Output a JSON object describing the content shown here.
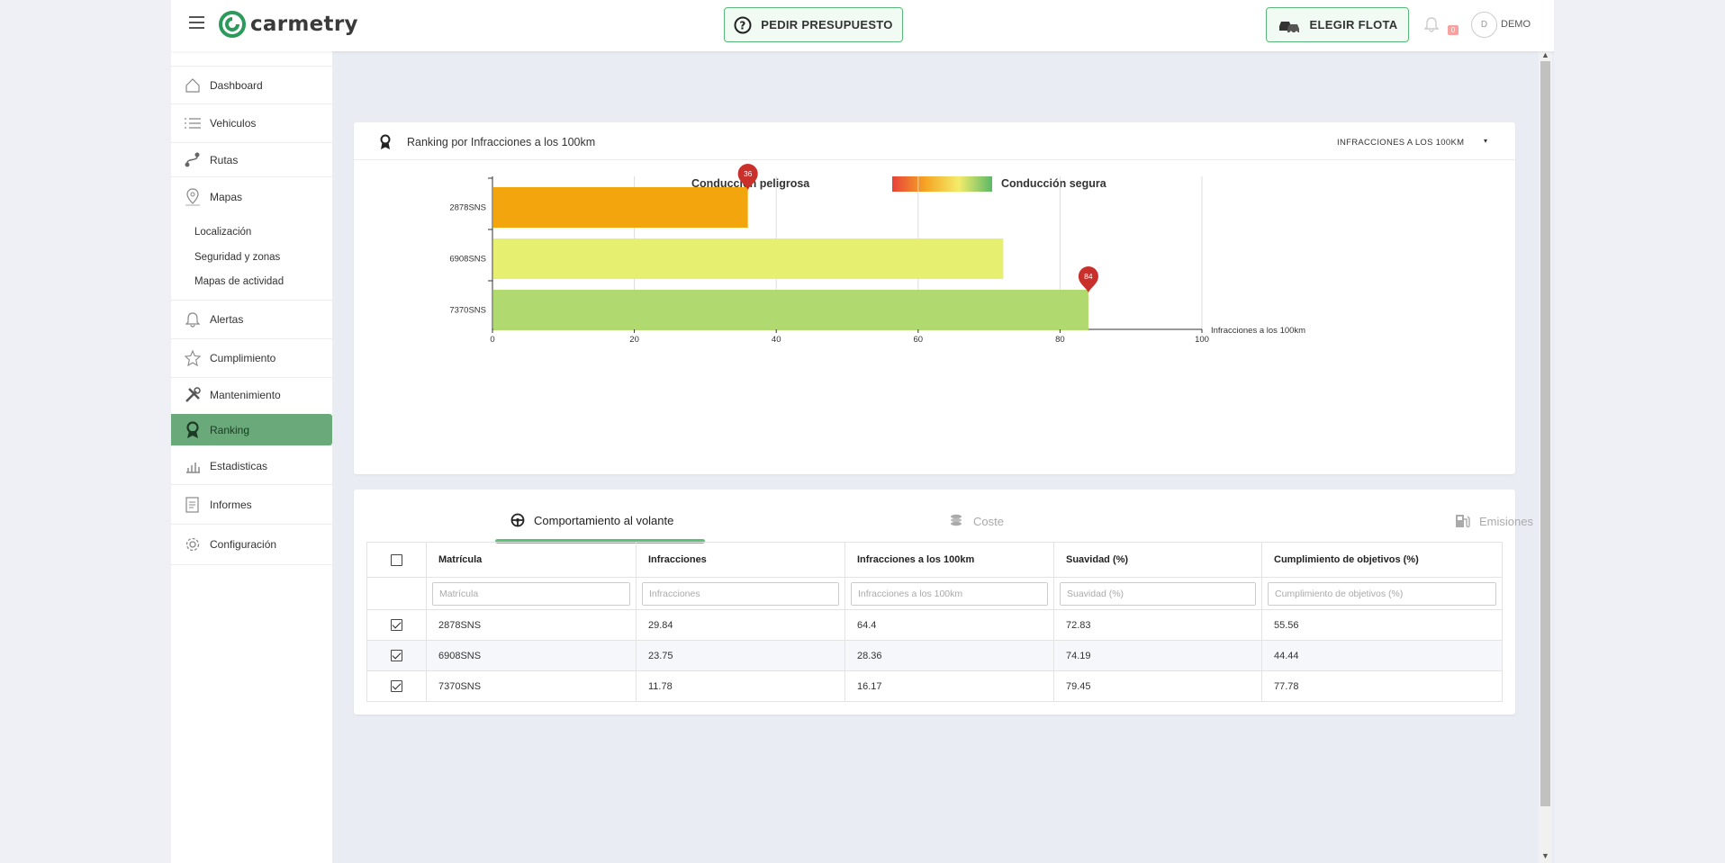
{
  "header": {
    "app_name": "carmetry",
    "quote_button": "PEDIR PRESUPUESTO",
    "fleet_button": "ELEGIR FLOTA",
    "notification_count": "0",
    "avatar_initial": "D",
    "user_name": "DEMO"
  },
  "sidebar": {
    "items": [
      {
        "label": "Dashboard",
        "icon": "home-icon"
      },
      {
        "label": "Vehiculos",
        "icon": "list-icon"
      },
      {
        "label": "Rutas",
        "icon": "route-icon"
      },
      {
        "label": "Mapas",
        "icon": "map-pin-icon"
      },
      {
        "label": "Alertas",
        "icon": "bell-icon"
      },
      {
        "label": "Cumplimiento",
        "icon": "star-icon"
      },
      {
        "label": "Mantenimiento",
        "icon": "tools-icon"
      },
      {
        "label": "Ranking",
        "icon": "medal-icon"
      },
      {
        "label": "Estadisticas",
        "icon": "bar-chart-icon"
      },
      {
        "label": "Informes",
        "icon": "report-icon"
      },
      {
        "label": "Configuración",
        "icon": "gear-icon"
      }
    ],
    "map_subitems": [
      "Localización",
      "Seguridad y zonas",
      "Mapas de actividad"
    ],
    "active": "Ranking"
  },
  "ranking_card": {
    "title": "Ranking por Infracciones a los 100km",
    "metric_select": "INFRACCIONES A LOS 100KM",
    "legend_dangerous": "Conducción peligrosa",
    "legend_safe": "Conducción segura"
  },
  "chart_data": {
    "type": "bar",
    "orientation": "horizontal",
    "categories": [
      "2878SNS",
      "6908SNS",
      "7370SNS"
    ],
    "values": [
      36,
      72,
      84
    ],
    "colors": [
      "#f2a50c",
      "#e6ef70",
      "#b0d96f"
    ],
    "markers": [
      {
        "category": "2878SNS",
        "value": 36,
        "label": "36"
      },
      {
        "category": "7370SNS",
        "value": 84,
        "label": "84"
      }
    ],
    "xlabel": "Infracciones a los 100km",
    "xlim": [
      0,
      100
    ],
    "xticks": [
      0,
      20,
      40,
      60,
      80,
      100
    ],
    "grid": true
  },
  "tabs": [
    {
      "label": "Comportamiento al volante",
      "icon": "steering-wheel-icon",
      "active": true
    },
    {
      "label": "Coste",
      "icon": "coins-icon",
      "active": false
    },
    {
      "label": "Emisiones",
      "icon": "fuel-pump-icon",
      "active": false
    }
  ],
  "table": {
    "columns": [
      "Matrícula",
      "Infracciones",
      "Infracciones a los 100km",
      "Suavidad (%)",
      "Cumplimiento de objetivos (%)"
    ],
    "filters": [
      "Matrícula",
      "Infracciones",
      "Infracciones a los 100km",
      "Suavidad (%)",
      "Cumplimiento de objetivos (%)"
    ],
    "rows": [
      {
        "checked": true,
        "cells": [
          "2878SNS",
          "29.84",
          "64.4",
          "72.83",
          "55.56"
        ]
      },
      {
        "checked": true,
        "cells": [
          "6908SNS",
          "23.75",
          "28.36",
          "74.19",
          "44.44"
        ]
      },
      {
        "checked": true,
        "cells": [
          "7370SNS",
          "11.78",
          "16.17",
          "79.45",
          "77.78"
        ]
      }
    ]
  },
  "colors": {
    "accent_green": "#5cb868",
    "marker_red": "#c9302c"
  }
}
